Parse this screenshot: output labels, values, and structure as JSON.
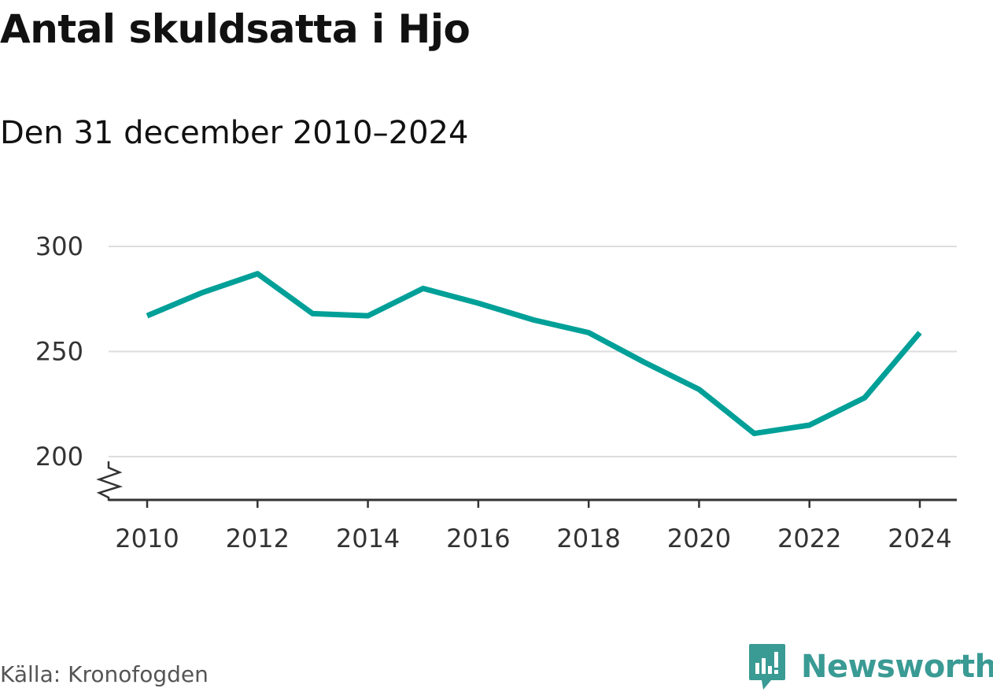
{
  "title": "Antal skuldsatta i Hjo",
  "subtitle": "Den 31 december 2010–2024",
  "source": "Källa: Kronofogden",
  "brand": {
    "name": "Newsworthy",
    "icon": "newsworthy-logo-icon",
    "color": "#3a9a94"
  },
  "colors": {
    "line": "#00a098",
    "grid": "#dddddd",
    "axis": "#333333"
  },
  "chart_data": {
    "type": "line",
    "x": [
      2010,
      2011,
      2012,
      2013,
      2014,
      2015,
      2016,
      2017,
      2018,
      2019,
      2020,
      2021,
      2022,
      2023,
      2024
    ],
    "series": [
      {
        "values": [
          267,
          278,
          287,
          268,
          267,
          280,
          273,
          265,
          259,
          245,
          232,
          211,
          215,
          228,
          259
        ]
      }
    ],
    "xticks": [
      "2010",
      "2012",
      "2014",
      "2016",
      "2018",
      "2020",
      "2022",
      "2024"
    ],
    "yticks": [
      "200",
      "250",
      "300"
    ],
    "xlim": [
      2010,
      2024
    ],
    "ylim": [
      200,
      300
    ],
    "y_axis_break": true,
    "grid": true,
    "legend": "none"
  }
}
